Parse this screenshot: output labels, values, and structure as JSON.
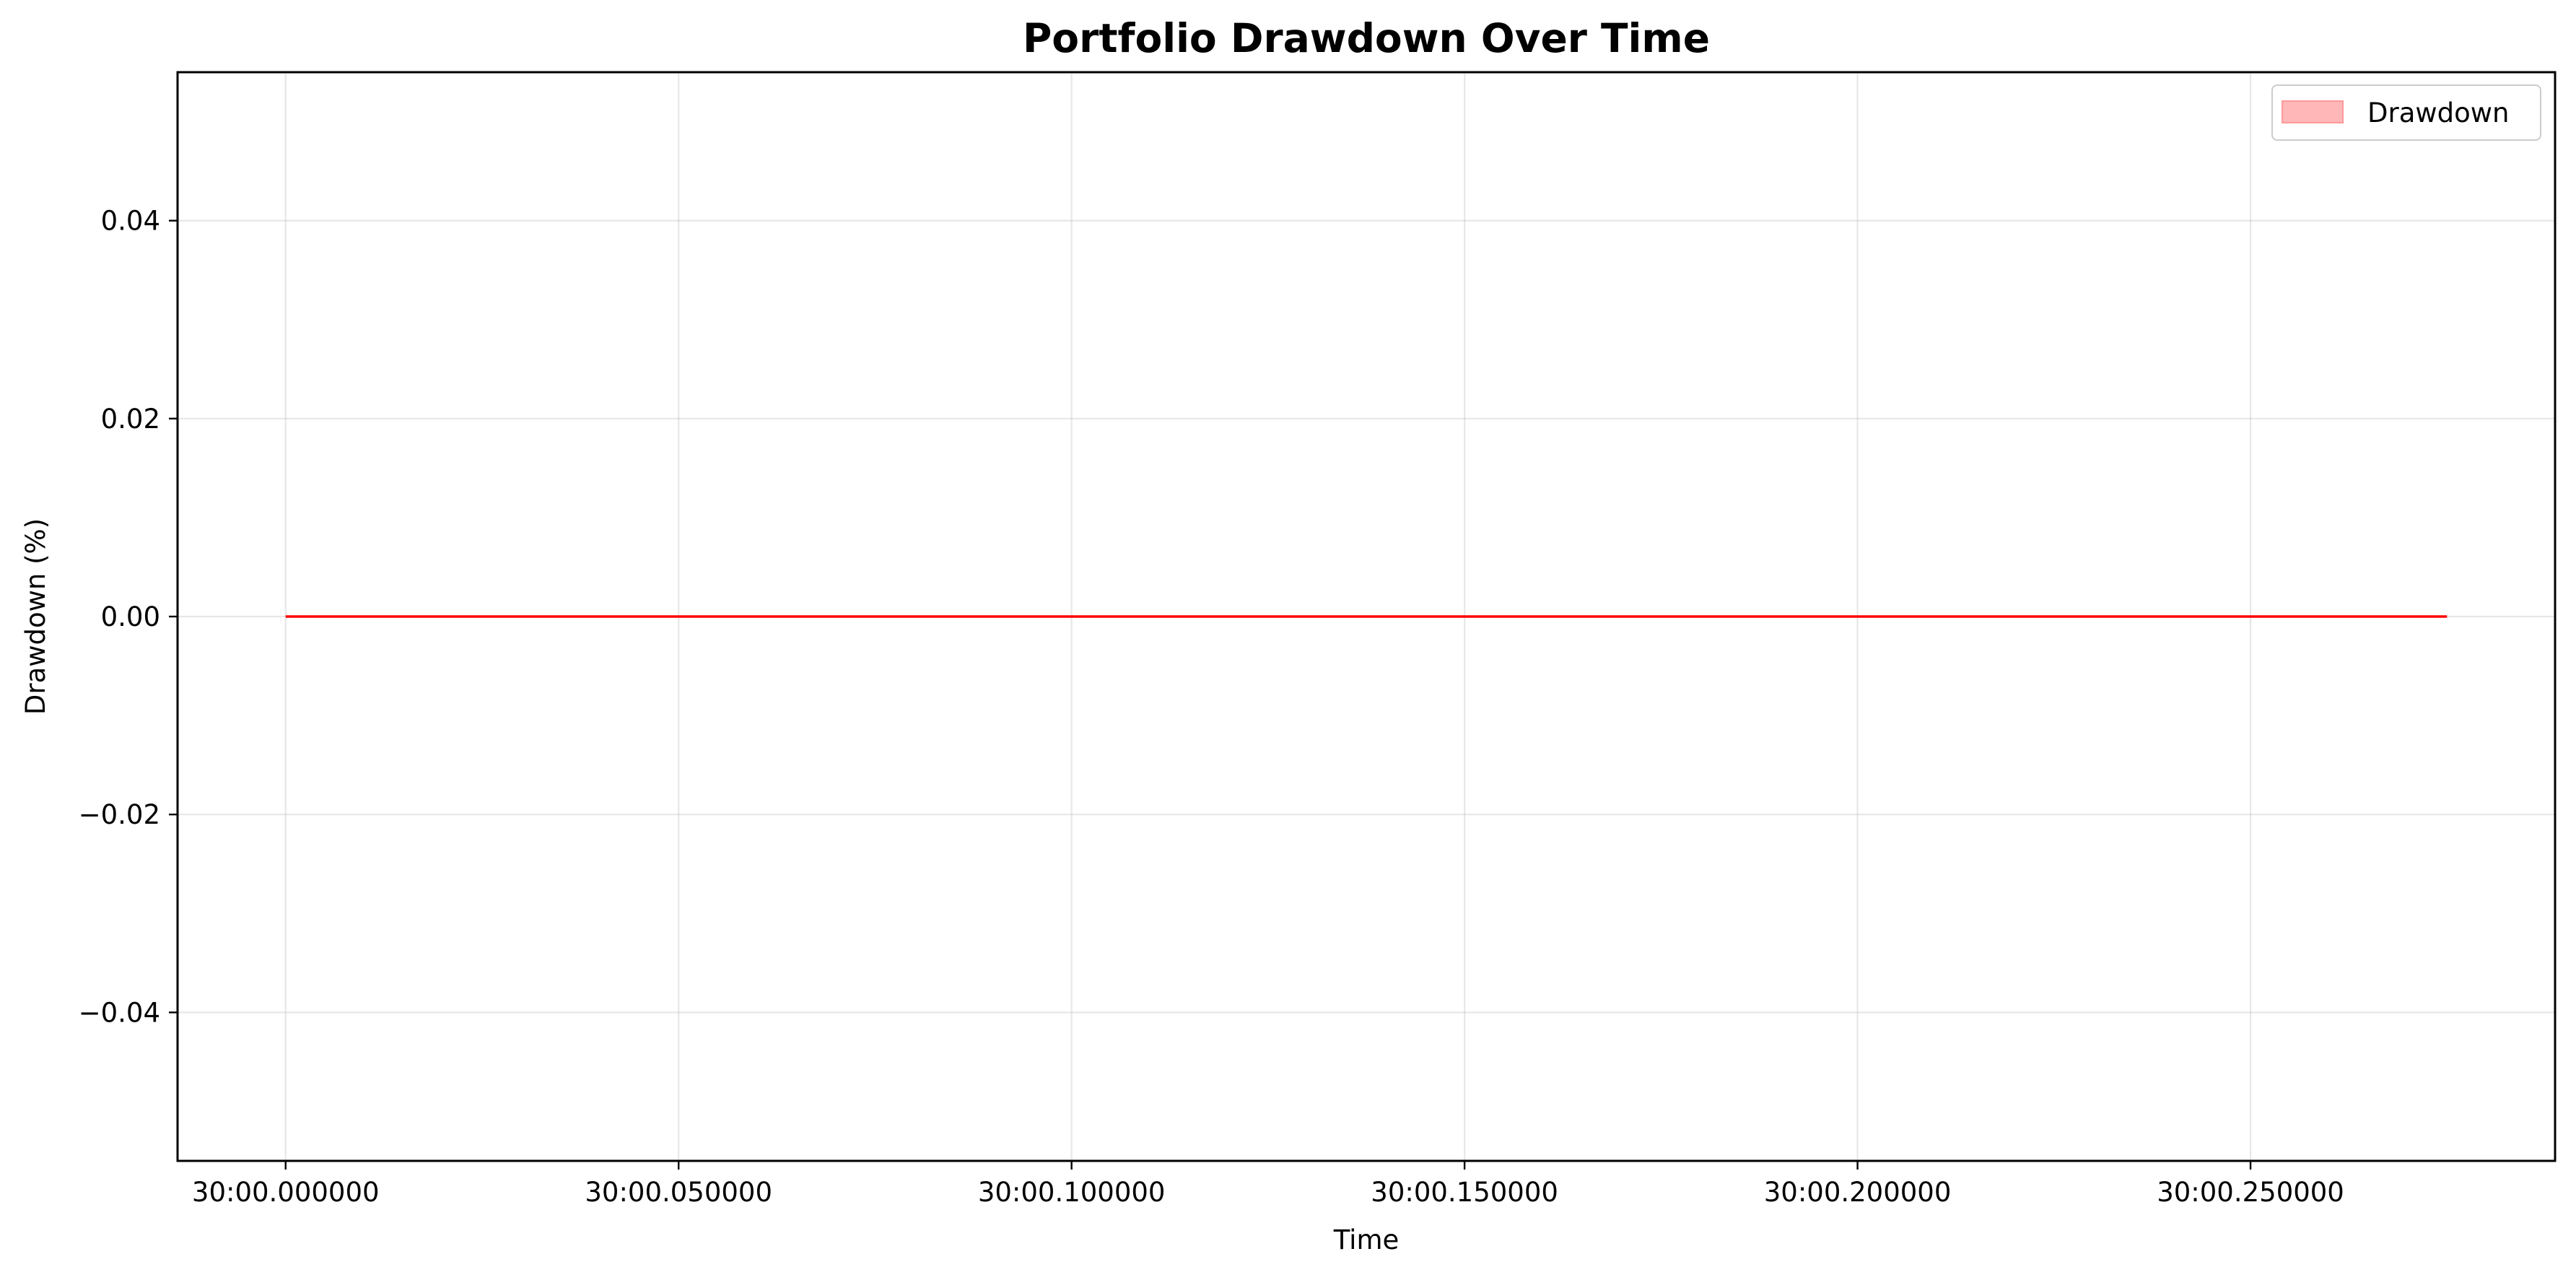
{
  "chart_data": {
    "type": "area",
    "title": "Portfolio Drawdown Over Time",
    "xlabel": "Time",
    "ylabel": "Drawdown (%)",
    "x_ticks": [
      "30:00.000000",
      "30:00.050000",
      "30:00.100000",
      "30:00.150000",
      "30:00.200000",
      "30:00.250000"
    ],
    "y_ticks": [
      0.04,
      0.02,
      0.0,
      -0.02,
      -0.04
    ],
    "y_tick_labels": [
      "0.04",
      "0.02",
      "0.00",
      "−0.02",
      "−0.04"
    ],
    "xlim": [
      "29:59.986250",
      "30:00.288750"
    ],
    "ylim": [
      -0.055,
      0.055
    ],
    "grid": true,
    "legend_position": "top-right",
    "series": [
      {
        "name": "Drawdown",
        "color": "#ff0000",
        "fill_color": "#ff9999",
        "x": [
          "30:00.000000",
          "30:00.275000"
        ],
        "y": [
          0.0,
          0.0
        ]
      }
    ]
  }
}
